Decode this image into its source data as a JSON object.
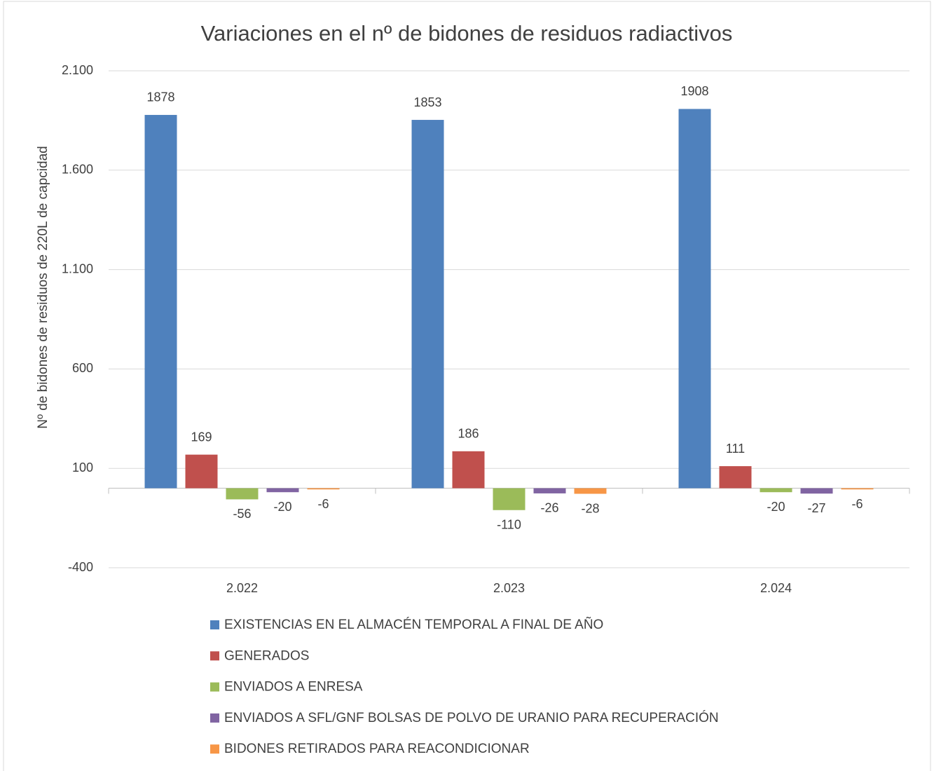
{
  "chart_data": {
    "type": "bar",
    "title": "Variaciones en el nº de bidones de residuos radiactivos",
    "y_label": "Nº de bidones de residuos de 220L de capcidad",
    "categories": [
      "2.022",
      "2.023",
      "2.024"
    ],
    "series": [
      {
        "name": "EXISTENCIAS EN EL ALMACÉN TEMPORAL A FINAL DE AÑO",
        "color": "#4f81bd",
        "values": [
          1878,
          1853,
          1908
        ]
      },
      {
        "name": "GENERADOS",
        "color": "#c0504d",
        "values": [
          169,
          186,
          111
        ]
      },
      {
        "name": "ENVIADOS A ENRESA",
        "color": "#9bbb59",
        "values": [
          -56,
          -110,
          -20
        ]
      },
      {
        "name": "ENVIADOS A  SFL/GNF BOLSAS DE POLVO DE URANIO PARA RECUPERACIÓN",
        "color": "#8064a2",
        "values": [
          -20,
          -26,
          -27
        ]
      },
      {
        "name": "BIDONES RETIRADOS PARA REACONDICIONAR",
        "color": "#f79646",
        "values": [
          -6,
          -28,
          -6
        ]
      }
    ],
    "ylim": [
      -400,
      2100
    ],
    "yticks": [
      -400,
      100,
      {
        "value": 600,
        "label": "600"
      },
      {
        "value": 1100,
        "label": "1.100"
      },
      {
        "value": 1600,
        "label": "1.600"
      },
      {
        "value": 2100,
        "label": "2.100"
      }
    ],
    "grid": true,
    "legend": "bottom"
  }
}
